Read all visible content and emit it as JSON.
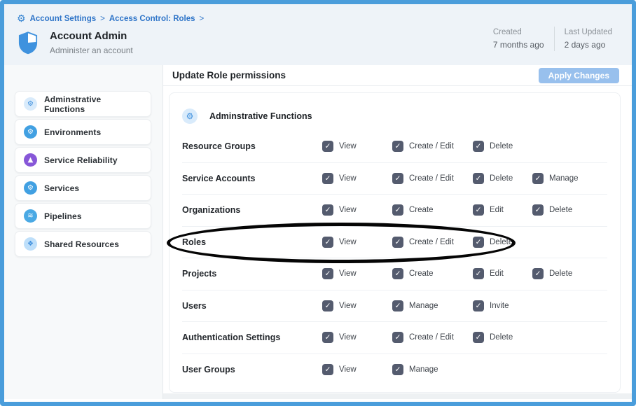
{
  "breadcrumb": {
    "separator": ">",
    "items": [
      {
        "label": "Account Settings"
      },
      {
        "label": "Access Control: Roles"
      }
    ]
  },
  "header": {
    "title": "Account Admin",
    "subtitle": "Administer an account",
    "meta": [
      {
        "label": "Created",
        "value": "7 months ago"
      },
      {
        "label": "Last Updated",
        "value": "2 days ago"
      }
    ]
  },
  "sidebar": {
    "items": [
      {
        "label": "Adminstrative Functions",
        "icon": "gear-icon",
        "glyph": "⚙",
        "bg": "#d9ebfb",
        "fg": "#3d8fdd"
      },
      {
        "label": "Environments",
        "icon": "environments-icon",
        "glyph": "⚙",
        "bg": "#41a0e2",
        "fg": "#ffffff"
      },
      {
        "label": "Service Reliability",
        "icon": "service-reliability-icon",
        "glyph": "▲",
        "bg": "#8757d8",
        "fg": "#ffffff"
      },
      {
        "label": "Services",
        "icon": "services-icon",
        "glyph": "⚙",
        "bg": "#41a0e2",
        "fg": "#ffffff"
      },
      {
        "label": "Pipelines",
        "icon": "pipelines-icon",
        "glyph": "≋",
        "bg": "#4aa9e4",
        "fg": "#ffffff"
      },
      {
        "label": "Shared Resources",
        "icon": "shared-resources-icon",
        "glyph": "❖",
        "bg": "#bedffa",
        "fg": "#3d8fdd"
      }
    ]
  },
  "main": {
    "title": "Update Role permissions",
    "apply_button_label": "Apply Changes",
    "section": {
      "title": "Adminstrative Functions",
      "icon": "gear-icon"
    },
    "check_glyph": "✓",
    "rows": [
      {
        "label": "Resource Groups",
        "permissions": [
          {
            "label": "View",
            "checked": true
          },
          {
            "label": "Create / Edit",
            "checked": true
          },
          {
            "label": "Delete",
            "checked": true
          }
        ]
      },
      {
        "label": "Service Accounts",
        "permissions": [
          {
            "label": "View",
            "checked": true
          },
          {
            "label": "Create / Edit",
            "checked": true
          },
          {
            "label": "Delete",
            "checked": true
          },
          {
            "label": "Manage",
            "checked": true
          }
        ]
      },
      {
        "label": "Organizations",
        "permissions": [
          {
            "label": "View",
            "checked": true
          },
          {
            "label": "Create",
            "checked": true
          },
          {
            "label": "Edit",
            "checked": true
          },
          {
            "label": "Delete",
            "checked": true
          }
        ]
      },
      {
        "label": "Roles",
        "annotated": true,
        "permissions": [
          {
            "label": "View",
            "checked": true
          },
          {
            "label": "Create / Edit",
            "checked": true
          },
          {
            "label": "Delete",
            "checked": true
          }
        ]
      },
      {
        "label": "Projects",
        "permissions": [
          {
            "label": "View",
            "checked": true
          },
          {
            "label": "Create",
            "checked": true
          },
          {
            "label": "Edit",
            "checked": true
          },
          {
            "label": "Delete",
            "checked": true
          }
        ]
      },
      {
        "label": "Users",
        "permissions": [
          {
            "label": "View",
            "checked": true
          },
          {
            "label": "Manage",
            "checked": true
          },
          {
            "label": "Invite",
            "checked": true
          }
        ]
      },
      {
        "label": "Authentication Settings",
        "permissions": [
          {
            "label": "View",
            "checked": true
          },
          {
            "label": "Create / Edit",
            "checked": true
          },
          {
            "label": "Delete",
            "checked": true
          }
        ]
      },
      {
        "label": "User Groups",
        "permissions": [
          {
            "label": "View",
            "checked": true
          },
          {
            "label": "Manage",
            "checked": true
          }
        ]
      }
    ]
  },
  "annotation": {
    "type": "ellipse",
    "target": "Roles row",
    "color": "#000000"
  },
  "colors": {
    "frame": "#4a9ddb",
    "accent_blue": "#3d8fdd",
    "checkbox": "#545b6e",
    "apply_button": "#98c0ed",
    "breadcrumb": "#2e74c8",
    "header_bg": "#eef3f8"
  }
}
